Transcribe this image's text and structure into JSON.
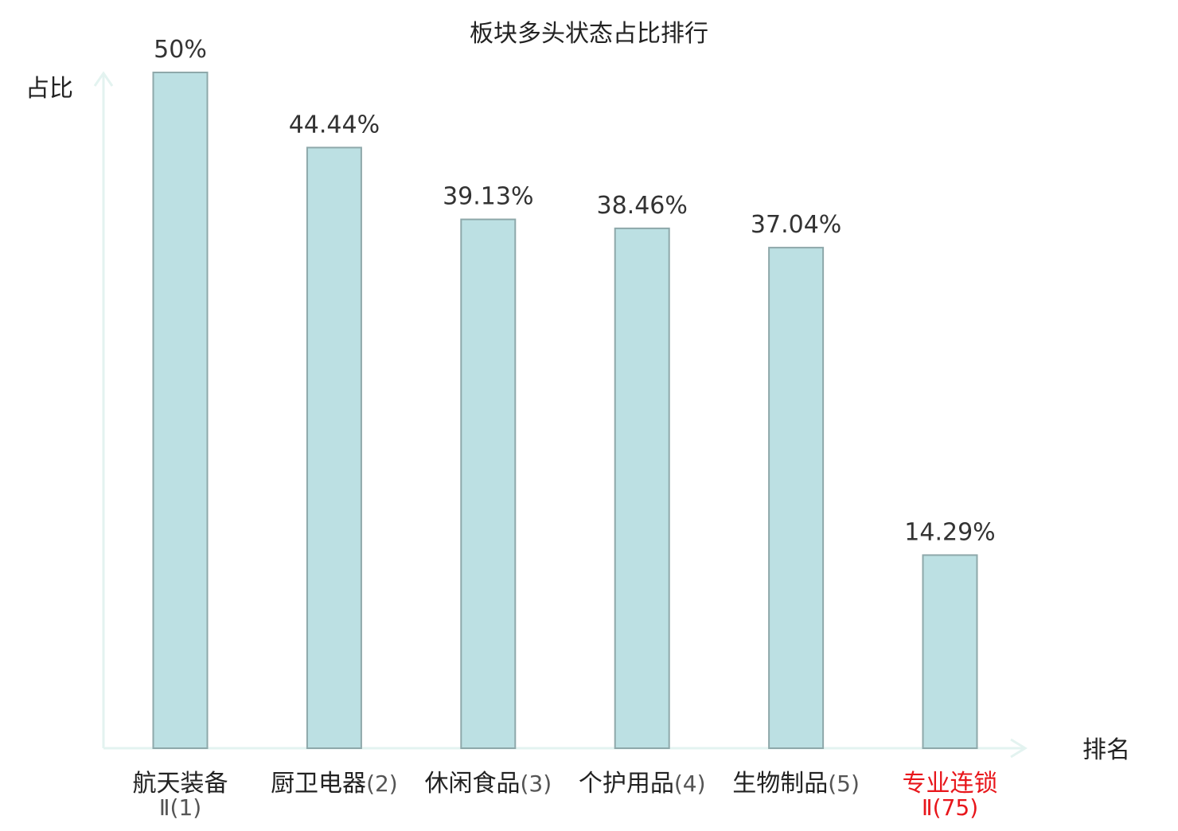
{
  "chart_data": {
    "type": "bar",
    "title": "板块多头状态占比排行",
    "ylabel": "占比",
    "xlabel": "排名",
    "ylim": [
      0,
      50
    ],
    "grid": false,
    "categories": [
      {
        "name": "航天装备",
        "rank": "Ⅱ(1)",
        "highlight": false
      },
      {
        "name": "厨卫电器",
        "rank": "(2)",
        "highlight": false
      },
      {
        "name": "休闲食品",
        "rank": "(3)",
        "highlight": false
      },
      {
        "name": "个护用品",
        "rank": "(4)",
        "highlight": false
      },
      {
        "name": "生物制品",
        "rank": "(5)",
        "highlight": false
      },
      {
        "name": "专业连锁",
        "rank": "Ⅱ(75)",
        "highlight": true
      }
    ],
    "values": [
      50,
      44.44,
      39.13,
      38.46,
      37.04,
      14.29
    ],
    "value_labels": [
      "50%",
      "44.44%",
      "39.13%",
      "38.46%",
      "37.04%",
      "14.29%"
    ],
    "colors": {
      "bar_fill": "#bce0e3",
      "bar_stroke": "#8ea8aa",
      "axis": "#e3f3f0",
      "text": "#222222",
      "rank_text": "#555555",
      "highlight_text": "#e8161b"
    }
  }
}
